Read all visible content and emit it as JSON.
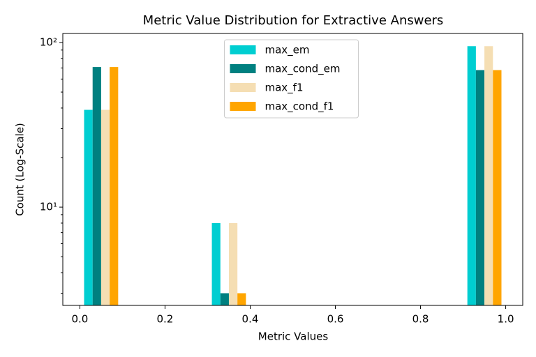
{
  "chart_data": {
    "type": "histogram",
    "title": "Metric Value Distribution for Extractive Answers",
    "xlabel": "Metric Values",
    "ylabel": "Count (Log-Scale)",
    "bins": [
      0.0,
      0.1,
      0.2,
      0.3,
      0.4,
      0.5,
      0.6,
      0.7,
      0.8,
      0.9,
      1.0
    ],
    "series": [
      {
        "name": "max_em",
        "color": "#00ced1",
        "values": [
          39,
          0,
          0,
          8,
          0,
          0,
          0,
          0,
          0,
          95
        ]
      },
      {
        "name": "max_cond_em",
        "color": "#008080",
        "values": [
          71,
          0,
          0,
          3,
          0,
          0,
          0,
          0,
          0,
          68
        ]
      },
      {
        "name": "max_f1",
        "color": "#f5deb3",
        "values": [
          39,
          0,
          0,
          8,
          0,
          0,
          0,
          0,
          0,
          95
        ]
      },
      {
        "name": "max_cond_f1",
        "color": "#ffa500",
        "values": [
          71,
          0,
          0,
          3,
          0,
          0,
          0,
          0,
          0,
          68
        ]
      }
    ],
    "xlim": [
      -0.04,
      1.04
    ],
    "xticks": [
      {
        "value": 0,
        "label": "0.0"
      },
      0.2,
      0.4,
      0.6,
      0.8,
      {
        "value": 1,
        "label": "1.0"
      }
    ],
    "ylim": [
      2.53,
      113.5
    ],
    "yscale": "log",
    "yticks": [
      {
        "value": 10,
        "label": "10¹"
      },
      {
        "value": 100,
        "label": "10²"
      }
    ],
    "yminorticks": [
      3,
      4,
      5,
      6,
      7,
      8,
      9,
      20,
      30,
      40,
      50,
      60,
      70,
      80,
      90
    ],
    "legend": "upper center"
  }
}
